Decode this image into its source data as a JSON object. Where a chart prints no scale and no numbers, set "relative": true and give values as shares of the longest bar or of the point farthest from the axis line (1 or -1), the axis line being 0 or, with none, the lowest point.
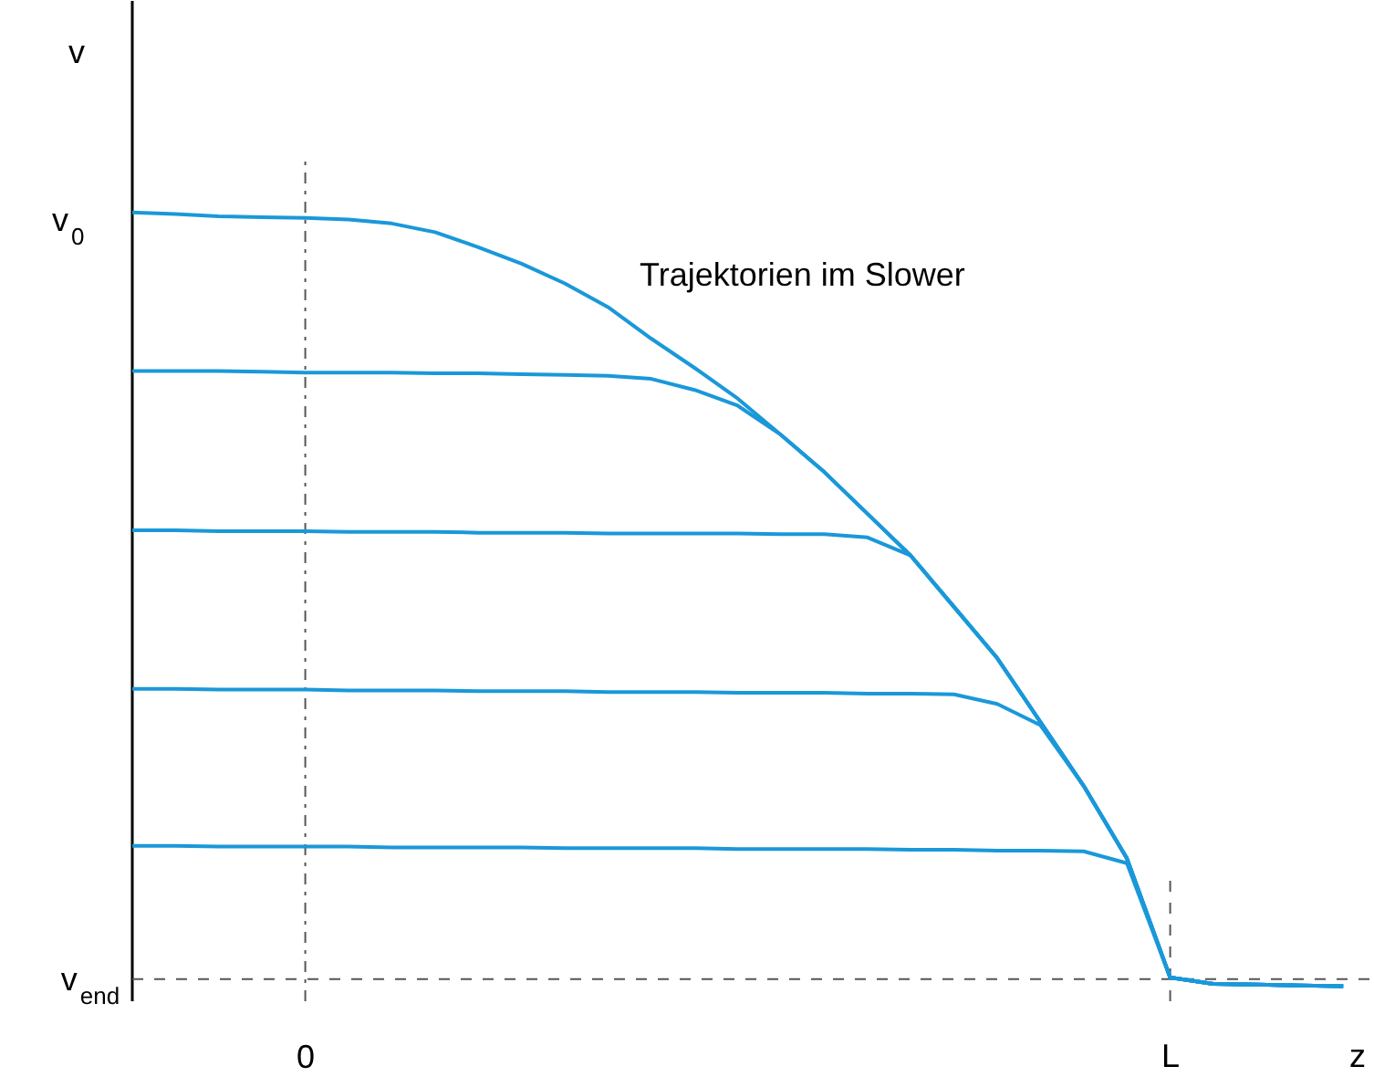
{
  "chart_data": {
    "type": "line",
    "relative": true,
    "xlabel": "z",
    "ylabel": "v",
    "categories": [
      null,
      null,
      null,
      null,
      "0",
      null,
      null,
      null,
      null,
      null,
      null,
      null,
      null,
      null,
      null,
      null,
      null,
      null,
      null,
      null,
      null,
      null,
      null,
      null,
      "L",
      null,
      null,
      null,
      null
    ],
    "annotations": [
      "Trajektorien im Slower",
      "v$_{0}$"
    ],
    "marker": "none",
    "line_style": "solid",
    "ref_lines": [
      {
        "axis": "x",
        "value": "0",
        "color": "#555555",
        "line_style": "dashdot"
      },
      {
        "axis": "x",
        "value": "L",
        "color": "#555555",
        "line_style": "dashed"
      },
      {
        "axis": "y",
        "value": 0.028,
        "label": "v$_{end}$",
        "color": "#555555",
        "line_style": "dashed"
      }
    ],
    "series": [
      {
        "color": "#1a98d9",
        "values": [
          1.0,
          0.998,
          0.995,
          0.994,
          0.993,
          0.991,
          0.986,
          0.975,
          0.956,
          0.935,
          0.91,
          0.88,
          0.84,
          0.803,
          0.764,
          0.718,
          0.671,
          0.618,
          0.565,
          0.5,
          0.435,
          0.354,
          0.273,
          0.181,
          0.03,
          0.022,
          0.021,
          0.02,
          0.019
        ]
      },
      {
        "color": "#1a98d9",
        "values": [
          0.799,
          0.799,
          0.799,
          0.798,
          0.797,
          0.797,
          0.797,
          0.796,
          0.796,
          0.795,
          0.794,
          0.793,
          0.789,
          0.775,
          0.755,
          0.718,
          0.671,
          0.618,
          0.565,
          0.5,
          0.435,
          0.354,
          0.273,
          0.181,
          0.03,
          0.022,
          0.021,
          0.02,
          0.019
        ]
      },
      {
        "color": "#1a98d9",
        "values": [
          0.597,
          0.597,
          0.596,
          0.596,
          0.596,
          0.595,
          0.595,
          0.595,
          0.594,
          0.594,
          0.594,
          0.593,
          0.593,
          0.593,
          0.593,
          0.592,
          0.592,
          0.588,
          0.565,
          0.5,
          0.435,
          0.354,
          0.273,
          0.181,
          0.03,
          0.022,
          0.021,
          0.02,
          0.019
        ]
      },
      {
        "color": "#1a98d9",
        "values": [
          0.396,
          0.396,
          0.395,
          0.395,
          0.395,
          0.394,
          0.394,
          0.394,
          0.393,
          0.393,
          0.393,
          0.392,
          0.392,
          0.392,
          0.391,
          0.391,
          0.391,
          0.39,
          0.39,
          0.389,
          0.377,
          0.35,
          0.273,
          0.181,
          0.03,
          0.022,
          0.021,
          0.02,
          0.019
        ]
      },
      {
        "color": "#1a98d9",
        "values": [
          0.197,
          0.197,
          0.196,
          0.196,
          0.196,
          0.196,
          0.195,
          0.195,
          0.195,
          0.195,
          0.194,
          0.194,
          0.194,
          0.194,
          0.193,
          0.193,
          0.193,
          0.193,
          0.192,
          0.192,
          0.191,
          0.191,
          0.19,
          0.175,
          0.03,
          0.022,
          0.021,
          0.02,
          0.019
        ]
      }
    ]
  }
}
